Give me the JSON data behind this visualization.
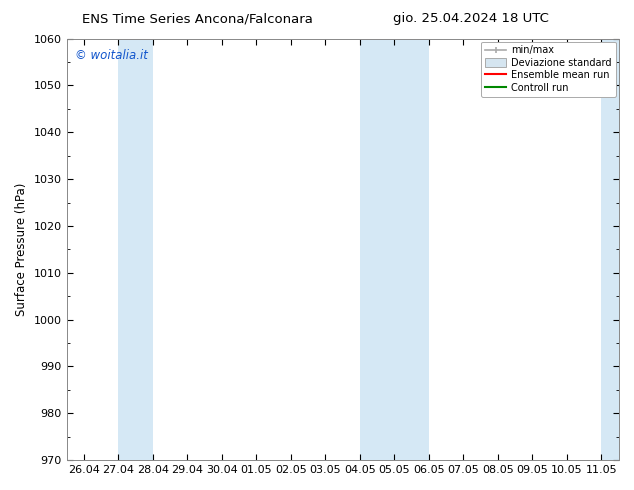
{
  "title_left": "ENS Time Series Ancona/Falconara",
  "title_right": "gio. 25.04.2024 18 UTC",
  "ylabel": "Surface Pressure (hPa)",
  "ylim": [
    970,
    1060
  ],
  "yticks": [
    970,
    980,
    990,
    1000,
    1010,
    1020,
    1030,
    1040,
    1050,
    1060
  ],
  "xtick_labels": [
    "26.04",
    "27.04",
    "28.04",
    "29.04",
    "30.04",
    "01.05",
    "02.05",
    "03.05",
    "04.05",
    "05.05",
    "06.05",
    "07.05",
    "08.05",
    "09.05",
    "10.05",
    "11.05"
  ],
  "xtick_positions": [
    0,
    1,
    2,
    3,
    4,
    5,
    6,
    7,
    8,
    9,
    10,
    11,
    12,
    13,
    14,
    15
  ],
  "xlim": [
    -0.5,
    15.5
  ],
  "shaded_bands": [
    {
      "x_start": 1.0,
      "x_end": 2.0,
      "color": "#d5e8f5"
    },
    {
      "x_start": 8.0,
      "x_end": 9.0,
      "color": "#d5e8f5"
    },
    {
      "x_start": 9.0,
      "x_end": 10.0,
      "color": "#d5e8f5"
    },
    {
      "x_start": 15.0,
      "x_end": 15.5,
      "color": "#d5e8f5"
    }
  ],
  "legend_labels": [
    "min/max",
    "Deviazione standard",
    "Ensemble mean run",
    "Controll run"
  ],
  "watermark_text": "© woitalia.it",
  "watermark_color": "#1155cc",
  "bg_color": "#ffffff",
  "plot_bg_color": "#ffffff",
  "title_fontsize": 9.5,
  "axis_fontsize": 8.5,
  "tick_fontsize": 8
}
